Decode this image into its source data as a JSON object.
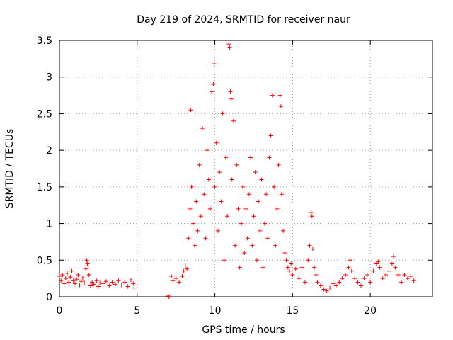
{
  "chart_data": {
    "type": "scatter",
    "title": "Day 219 of 2024, SRMTID for receiver naur",
    "xlabel": "GPS time / hours",
    "ylabel": "SRMTID / TECUs",
    "xlim": [
      0,
      24
    ],
    "ylim": [
      0,
      3.5
    ],
    "xticks": [
      0,
      5,
      10,
      15,
      20
    ],
    "xtick_labels": [
      "0",
      "5",
      "10",
      "15",
      "20"
    ],
    "yticks": [
      0,
      0.5,
      1,
      1.5,
      2,
      2.5,
      3,
      3.5
    ],
    "ytick_labels": [
      "0",
      "0.5",
      "1",
      "1.5",
      "2",
      "2.5",
      "3",
      "3.5"
    ],
    "grid": true,
    "marker": "+",
    "marker_color": "#ff0000",
    "series": [
      {
        "name": "SRMTID",
        "points": [
          [
            0.0,
            0.28
          ],
          [
            0.1,
            0.22
          ],
          [
            0.2,
            0.3
          ],
          [
            0.3,
            0.18
          ],
          [
            0.4,
            0.25
          ],
          [
            0.5,
            0.32
          ],
          [
            0.6,
            0.2
          ],
          [
            0.7,
            0.27
          ],
          [
            0.8,
            0.35
          ],
          [
            0.9,
            0.22
          ],
          [
            1.0,
            0.18
          ],
          [
            1.1,
            0.24
          ],
          [
            1.2,
            0.3
          ],
          [
            1.3,
            0.16
          ],
          [
            1.4,
            0.21
          ],
          [
            1.5,
            0.26
          ],
          [
            1.6,
            0.19
          ],
          [
            1.7,
            0.38
          ],
          [
            1.75,
            0.5
          ],
          [
            1.8,
            0.45
          ],
          [
            1.85,
            0.42
          ],
          [
            1.9,
            0.3
          ],
          [
            2.0,
            0.15
          ],
          [
            2.1,
            0.2
          ],
          [
            2.2,
            0.17
          ],
          [
            2.4,
            0.22
          ],
          [
            2.5,
            0.14
          ],
          [
            2.6,
            0.19
          ],
          [
            2.8,
            0.18
          ],
          [
            3.0,
            0.21
          ],
          [
            3.2,
            0.15
          ],
          [
            3.4,
            0.2
          ],
          [
            3.6,
            0.17
          ],
          [
            3.8,
            0.22
          ],
          [
            4.0,
            0.16
          ],
          [
            4.2,
            0.2
          ],
          [
            4.4,
            0.14
          ],
          [
            4.6,
            0.23
          ],
          [
            4.75,
            0.18
          ],
          [
            4.8,
            0.12
          ],
          [
            7.0,
            0.01
          ],
          [
            7.05,
            0.0
          ],
          [
            7.2,
            0.28
          ],
          [
            7.3,
            0.22
          ],
          [
            7.5,
            0.25
          ],
          [
            7.7,
            0.2
          ],
          [
            7.9,
            0.28
          ],
          [
            8.0,
            0.35
          ],
          [
            8.1,
            0.42
          ],
          [
            8.2,
            0.38
          ],
          [
            8.3,
            0.8
          ],
          [
            8.4,
            1.2
          ],
          [
            8.45,
            2.55
          ],
          [
            8.5,
            1.5
          ],
          [
            8.6,
            1.0
          ],
          [
            8.7,
            0.7
          ],
          [
            8.8,
            1.3
          ],
          [
            8.9,
            0.9
          ],
          [
            9.0,
            1.8
          ],
          [
            9.1,
            1.1
          ],
          [
            9.2,
            2.3
          ],
          [
            9.3,
            1.4
          ],
          [
            9.4,
            0.8
          ],
          [
            9.5,
            2.0
          ],
          [
            9.6,
            1.6
          ],
          [
            9.7,
            1.2
          ],
          [
            9.8,
            2.8
          ],
          [
            9.9,
            2.9
          ],
          [
            9.95,
            3.18
          ],
          [
            10.0,
            1.5
          ],
          [
            10.1,
            2.1
          ],
          [
            10.2,
            0.9
          ],
          [
            10.3,
            1.7
          ],
          [
            10.4,
            1.3
          ],
          [
            10.5,
            2.5
          ],
          [
            10.6,
            0.5
          ],
          [
            10.7,
            1.9
          ],
          [
            10.8,
            1.1
          ],
          [
            10.9,
            3.45
          ],
          [
            10.95,
            3.4
          ],
          [
            11.0,
            2.8
          ],
          [
            11.05,
            2.7
          ],
          [
            11.1,
            1.6
          ],
          [
            11.2,
            2.4
          ],
          [
            11.3,
            0.7
          ],
          [
            11.4,
            1.8
          ],
          [
            11.5,
            1.2
          ],
          [
            11.6,
            0.4
          ],
          [
            11.7,
            1.0
          ],
          [
            11.8,
            1.5
          ],
          [
            11.9,
            0.6
          ],
          [
            12.0,
            1.2
          ],
          [
            12.1,
            0.8
          ],
          [
            12.2,
            1.4
          ],
          [
            12.3,
            1.9
          ],
          [
            12.4,
            0.7
          ],
          [
            12.5,
            1.1
          ],
          [
            12.6,
            1.7
          ],
          [
            12.7,
            0.5
          ],
          [
            12.8,
            1.3
          ],
          [
            12.9,
            0.9
          ],
          [
            13.0,
            1.6
          ],
          [
            13.1,
            0.4
          ],
          [
            13.2,
            1.0
          ],
          [
            13.3,
            1.4
          ],
          [
            13.4,
            0.8
          ],
          [
            13.5,
            1.9
          ],
          [
            13.6,
            2.2
          ],
          [
            13.7,
            2.75
          ],
          [
            13.8,
            1.5
          ],
          [
            13.9,
            0.7
          ],
          [
            14.0,
            1.2
          ],
          [
            14.1,
            1.8
          ],
          [
            14.2,
            2.75
          ],
          [
            14.25,
            2.6
          ],
          [
            14.3,
            1.4
          ],
          [
            14.4,
            0.9
          ],
          [
            14.5,
            0.6
          ],
          [
            14.6,
            0.5
          ],
          [
            14.7,
            0.4
          ],
          [
            14.8,
            0.35
          ],
          [
            14.9,
            0.45
          ],
          [
            15.0,
            0.3
          ],
          [
            15.2,
            0.38
          ],
          [
            15.4,
            0.25
          ],
          [
            15.6,
            0.4
          ],
          [
            15.8,
            0.2
          ],
          [
            16.0,
            0.5
          ],
          [
            16.1,
            0.7
          ],
          [
            16.2,
            1.15
          ],
          [
            16.25,
            1.1
          ],
          [
            16.3,
            0.65
          ],
          [
            16.4,
            0.4
          ],
          [
            16.5,
            0.3
          ],
          [
            16.6,
            0.2
          ],
          [
            16.8,
            0.15
          ],
          [
            17.0,
            0.1
          ],
          [
            17.2,
            0.08
          ],
          [
            17.4,
            0.12
          ],
          [
            17.6,
            0.18
          ],
          [
            17.8,
            0.15
          ],
          [
            18.0,
            0.2
          ],
          [
            18.2,
            0.25
          ],
          [
            18.4,
            0.3
          ],
          [
            18.6,
            0.4
          ],
          [
            18.7,
            0.5
          ],
          [
            18.8,
            0.35
          ],
          [
            19.0,
            0.25
          ],
          [
            19.2,
            0.2
          ],
          [
            19.4,
            0.15
          ],
          [
            19.6,
            0.25
          ],
          [
            19.8,
            0.3
          ],
          [
            20.0,
            0.2
          ],
          [
            20.2,
            0.35
          ],
          [
            20.4,
            0.45
          ],
          [
            20.5,
            0.48
          ],
          [
            20.6,
            0.4
          ],
          [
            20.8,
            0.25
          ],
          [
            21.0,
            0.3
          ],
          [
            21.2,
            0.35
          ],
          [
            21.4,
            0.45
          ],
          [
            21.5,
            0.55
          ],
          [
            21.6,
            0.4
          ],
          [
            21.8,
            0.3
          ],
          [
            22.0,
            0.2
          ],
          [
            22.2,
            0.3
          ],
          [
            22.4,
            0.25
          ],
          [
            22.6,
            0.28
          ],
          [
            22.8,
            0.22
          ]
        ]
      }
    ]
  }
}
